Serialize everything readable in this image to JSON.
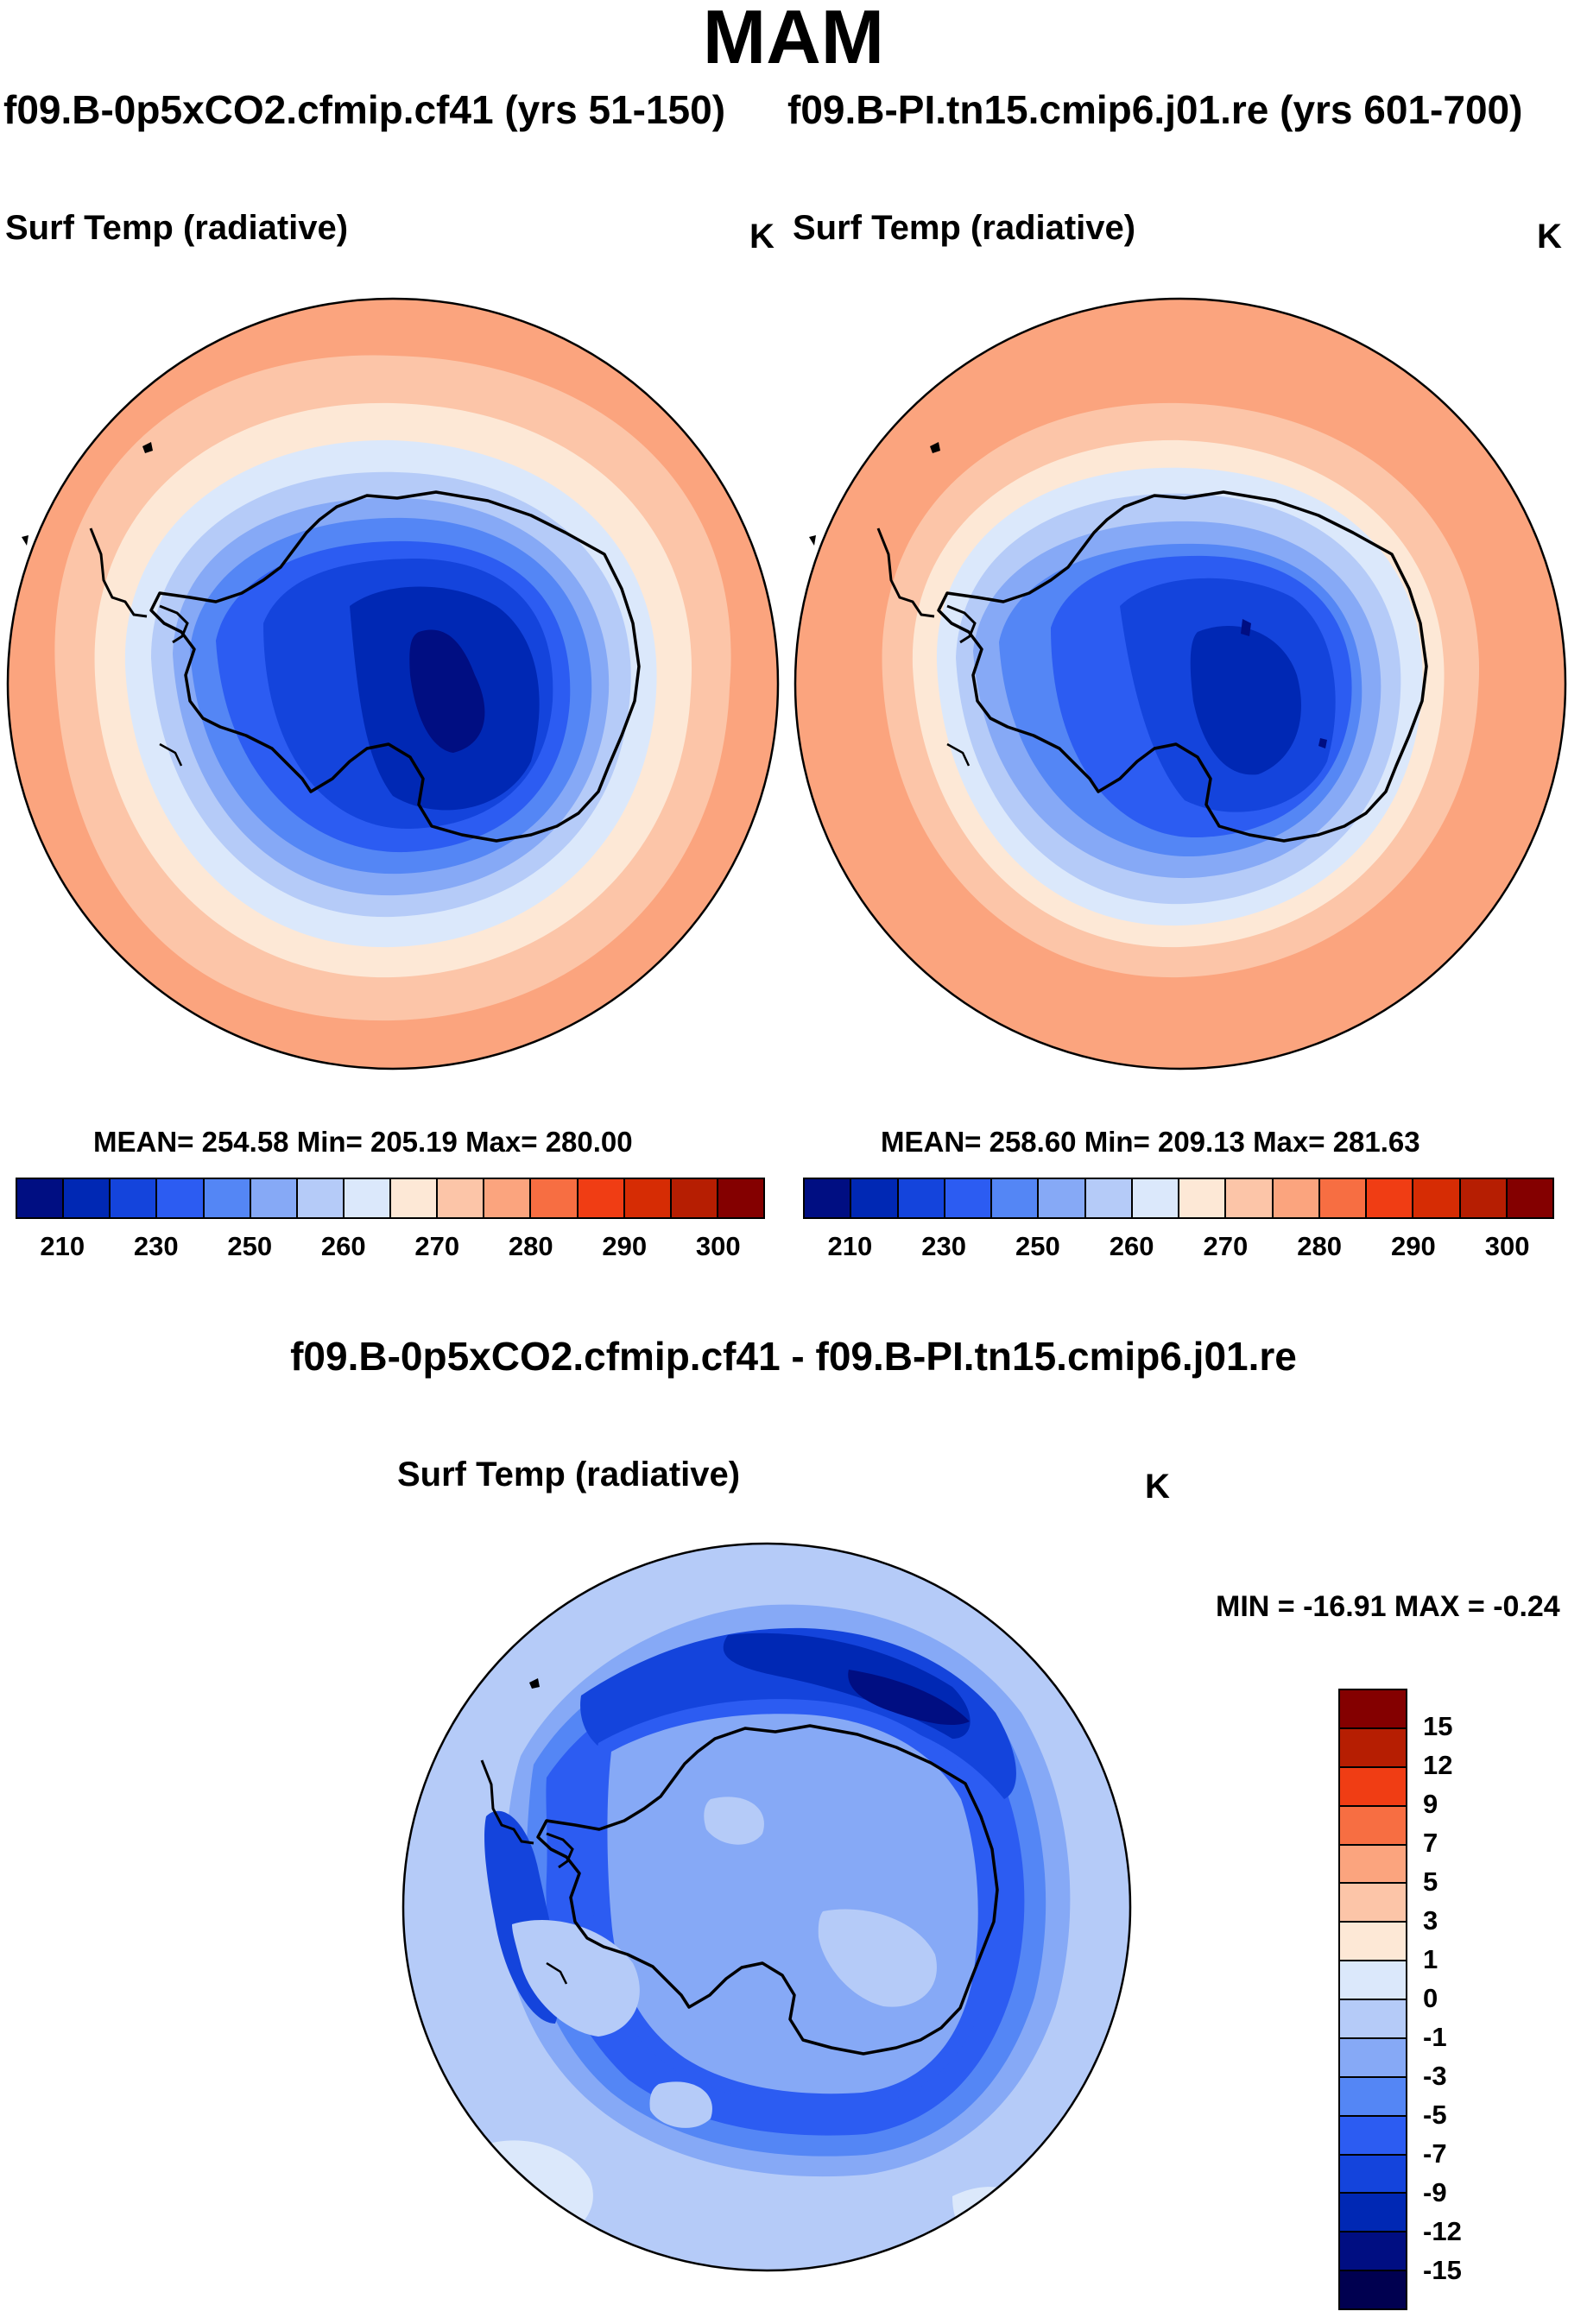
{
  "title": "MAM",
  "panels": [
    {
      "case_title": "f09.B-0p5xCO2.cfmip.cf41 (yrs 51-150)",
      "label_left": "Surf Temp (radiative)",
      "label_right": "K",
      "stats": "MEAN= 254.58  Min= 205.19  Max= 280.00",
      "mean": 254.58,
      "min": 205.19,
      "max": 280.0
    },
    {
      "case_title": "f09.B-PI.tn15.cmip6.j01.re (yrs 601-700)",
      "label_left": "Surf Temp (radiative)",
      "label_right": "K",
      "stats": "MEAN= 258.60  Min= 209.13  Max= 281.63",
      "mean": 258.6,
      "min": 209.13,
      "max": 281.63
    }
  ],
  "colorbar": {
    "ticks": [
      "210",
      "230",
      "250",
      "260",
      "270",
      "280",
      "290",
      "300"
    ],
    "colors": [
      "#000e82",
      "#0028b4",
      "#1444dc",
      "#2c5cf2",
      "#5486f5",
      "#86a9f6",
      "#b5cbf8",
      "#dbe8fb",
      "#fde8d6",
      "#fcc5a8",
      "#fba47e",
      "#f76e42",
      "#f03d14",
      "#d62c04",
      "#b61e02",
      "#840000"
    ]
  },
  "diff": {
    "title": "f09.B-0p5xCO2.cfmip.cf41 - f09.B-PI.tn15.cmip6.j01.re",
    "label_left": "Surf Temp (radiative)",
    "label_right": "K",
    "minmax": "MIN = -16.91 MAX =  -0.24",
    "min": -16.91,
    "max": -0.24,
    "colorbar": {
      "ticks": [
        "15",
        "12",
        "9",
        "7",
        "5",
        "3",
        "1",
        "0",
        "-1",
        "-3",
        "-5",
        "-7",
        "-9",
        "-12",
        "-15"
      ],
      "colors": [
        "#840000",
        "#b61e02",
        "#f03d14",
        "#f76e42",
        "#fba47e",
        "#fcc5a8",
        "#fde8d6",
        "#dbe8fb",
        "#b5cbf8",
        "#86a9f6",
        "#5486f5",
        "#2c5cf2",
        "#1444dc",
        "#0028b4",
        "#000e82",
        "#000050"
      ]
    }
  }
}
